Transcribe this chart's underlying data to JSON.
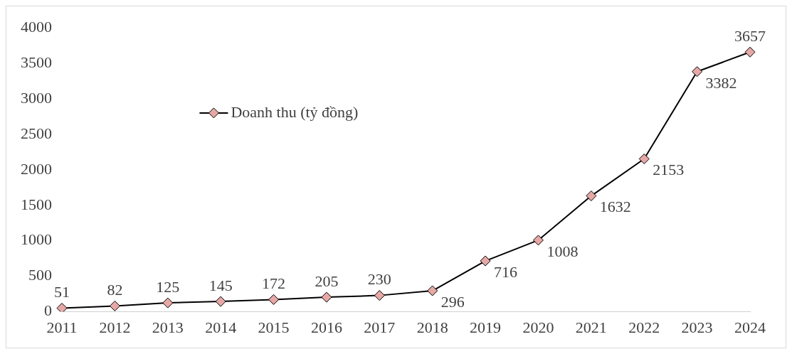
{
  "chart_data": {
    "type": "line",
    "categories": [
      "2011",
      "2012",
      "2013",
      "2014",
      "2015",
      "2016",
      "2017",
      "2018",
      "2019",
      "2020",
      "2021",
      "2022",
      "2023",
      "2024"
    ],
    "series": [
      {
        "name": "Doanh thu (tỷ đồng)",
        "color": "#e6a8a6",
        "values": [
          51,
          82,
          125,
          145,
          172,
          205,
          230,
          296,
          716,
          1008,
          1632,
          2153,
          3382,
          3657
        ]
      }
    ],
    "ylim": [
      0,
      4000
    ],
    "yticks": [
      0,
      500,
      1000,
      1500,
      2000,
      2500,
      3000,
      3500,
      4000
    ],
    "grid": false,
    "legend": "top left",
    "marker": "diamond",
    "line_style": "solid",
    "data_labels": true
  }
}
